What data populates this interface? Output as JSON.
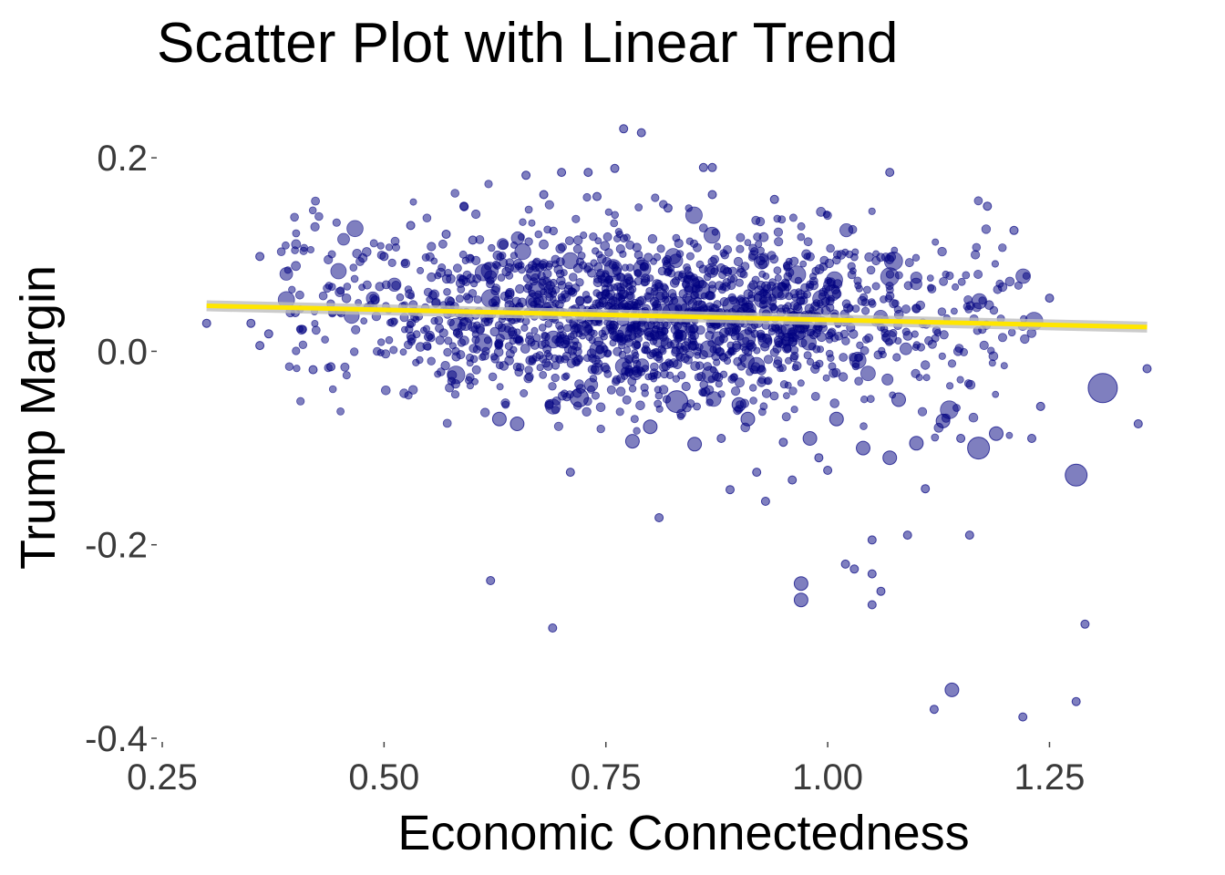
{
  "chart_data": {
    "type": "scatter",
    "title": "Scatter Plot with Linear Trend",
    "xlabel": "Economic Connectedness",
    "ylabel": "Trump Margin",
    "xlim": [
      0.25,
      1.38
    ],
    "ylim": [
      -0.4,
      0.235
    ],
    "x_ticks": [
      0.25,
      0.5,
      0.75,
      1.0,
      1.25
    ],
    "x_tick_labels": [
      "0.25",
      "0.50",
      "0.75",
      "1.00",
      "1.25"
    ],
    "y_ticks": [
      -0.4,
      -0.2,
      0.0,
      0.2
    ],
    "y_tick_labels": [
      "-0.4",
      "-0.2",
      "0.0",
      "0.2"
    ],
    "grid": false,
    "point_color": "#000080",
    "point_opacity": 0.5,
    "trend_color": "#FFE600",
    "trend_band_color": "#BEBEBE",
    "trend_line": {
      "x": [
        0.3,
        1.36
      ],
      "y": [
        0.047,
        0.025
      ]
    },
    "points": [
      {
        "x": 0.3,
        "y": 0.029,
        "s": 1
      },
      {
        "x": 0.36,
        "y": 0.098,
        "s": 1
      },
      {
        "x": 0.35,
        "y": 0.029,
        "s": 1
      },
      {
        "x": 0.36,
        "y": 0.006,
        "s": 1
      },
      {
        "x": 0.37,
        "y": 0.018,
        "s": 1
      },
      {
        "x": 0.4,
        "y": 0.04,
        "s": 1
      },
      {
        "x": 0.42,
        "y": -0.019,
        "s": 1
      },
      {
        "x": 0.44,
        "y": -0.016,
        "s": 1
      },
      {
        "x": 0.5,
        "y": 0.098,
        "s": 1
      },
      {
        "x": 0.53,
        "y": 0.13,
        "s": 1
      },
      {
        "x": 0.55,
        "y": 0.015,
        "s": 1
      },
      {
        "x": 0.57,
        "y": 0.121,
        "s": 1
      },
      {
        "x": 0.59,
        "y": 0.15,
        "s": 1
      },
      {
        "x": 0.6,
        "y": 0.115,
        "s": 1
      },
      {
        "x": 0.62,
        "y": -0.237,
        "s": 1
      },
      {
        "x": 0.63,
        "y": -0.07,
        "s": 2
      },
      {
        "x": 0.65,
        "y": -0.075,
        "s": 2
      },
      {
        "x": 0.66,
        "y": 0.182,
        "s": 1
      },
      {
        "x": 0.68,
        "y": 0.162,
        "s": 1
      },
      {
        "x": 0.69,
        "y": -0.286,
        "s": 1
      },
      {
        "x": 0.7,
        "y": 0.185,
        "s": 1
      },
      {
        "x": 0.71,
        "y": -0.125,
        "s": 1
      },
      {
        "x": 0.72,
        "y": -0.048,
        "s": 3
      },
      {
        "x": 0.73,
        "y": 0.185,
        "s": 1
      },
      {
        "x": 0.74,
        "y": 0.16,
        "s": 1
      },
      {
        "x": 0.76,
        "y": 0.189,
        "s": 1
      },
      {
        "x": 0.77,
        "y": 0.23,
        "s": 1
      },
      {
        "x": 0.78,
        "y": -0.093,
        "s": 2
      },
      {
        "x": 0.79,
        "y": 0.226,
        "s": 1
      },
      {
        "x": 0.8,
        "y": -0.078,
        "s": 2
      },
      {
        "x": 0.81,
        "y": -0.172,
        "s": 1
      },
      {
        "x": 0.82,
        "y": 0.148,
        "s": 1
      },
      {
        "x": 0.83,
        "y": -0.052,
        "s": 4
      },
      {
        "x": 0.85,
        "y": -0.096,
        "s": 2
      },
      {
        "x": 0.86,
        "y": 0.19,
        "s": 1
      },
      {
        "x": 0.87,
        "y": 0.162,
        "s": 1
      },
      {
        "x": 0.88,
        "y": -0.09,
        "s": 1
      },
      {
        "x": 0.89,
        "y": -0.143,
        "s": 1
      },
      {
        "x": 0.9,
        "y": -0.055,
        "s": 2
      },
      {
        "x": 0.91,
        "y": -0.07,
        "s": 2
      },
      {
        "x": 0.92,
        "y": -0.125,
        "s": 1
      },
      {
        "x": 0.93,
        "y": -0.155,
        "s": 1
      },
      {
        "x": 0.94,
        "y": 0.157,
        "s": 1
      },
      {
        "x": 0.95,
        "y": -0.094,
        "s": 1
      },
      {
        "x": 0.96,
        "y": -0.133,
        "s": 1
      },
      {
        "x": 0.97,
        "y": -0.24,
        "s": 2
      },
      {
        "x": 0.97,
        "y": -0.257,
        "s": 2
      },
      {
        "x": 0.98,
        "y": -0.09,
        "s": 2
      },
      {
        "x": 0.99,
        "y": -0.11,
        "s": 1
      },
      {
        "x": 1.0,
        "y": -0.123,
        "s": 1
      },
      {
        "x": 1.01,
        "y": -0.07,
        "s": 2
      },
      {
        "x": 1.02,
        "y": -0.22,
        "s": 1
      },
      {
        "x": 1.03,
        "y": -0.225,
        "s": 1
      },
      {
        "x": 1.04,
        "y": -0.1,
        "s": 2
      },
      {
        "x": 1.05,
        "y": -0.23,
        "s": 1
      },
      {
        "x": 1.05,
        "y": -0.195,
        "s": 1
      },
      {
        "x": 1.06,
        "y": -0.248,
        "s": 1
      },
      {
        "x": 1.05,
        "y": -0.262,
        "s": 1
      },
      {
        "x": 1.07,
        "y": -0.11,
        "s": 2
      },
      {
        "x": 1.08,
        "y": -0.05,
        "s": 2
      },
      {
        "x": 1.09,
        "y": -0.19,
        "s": 1
      },
      {
        "x": 1.1,
        "y": -0.095,
        "s": 2
      },
      {
        "x": 1.11,
        "y": -0.142,
        "s": 1
      },
      {
        "x": 1.12,
        "y": -0.37,
        "s": 1
      },
      {
        "x": 1.13,
        "y": -0.072,
        "s": 2
      },
      {
        "x": 1.14,
        "y": -0.35,
        "s": 2
      },
      {
        "x": 1.15,
        "y": -0.09,
        "s": 1
      },
      {
        "x": 1.16,
        "y": -0.19,
        "s": 1
      },
      {
        "x": 1.17,
        "y": -0.1,
        "s": 4
      },
      {
        "x": 1.18,
        "y": 0.15,
        "s": 1
      },
      {
        "x": 1.19,
        "y": -0.085,
        "s": 2
      },
      {
        "x": 1.21,
        "y": 0.125,
        "s": 1
      },
      {
        "x": 1.22,
        "y": -0.378,
        "s": 1
      },
      {
        "x": 1.23,
        "y": -0.09,
        "s": 1
      },
      {
        "x": 1.24,
        "y": -0.057,
        "s": 1
      },
      {
        "x": 1.25,
        "y": 0.055,
        "s": 1
      },
      {
        "x": 1.28,
        "y": -0.128,
        "s": 4
      },
      {
        "x": 1.28,
        "y": -0.362,
        "s": 1
      },
      {
        "x": 1.29,
        "y": -0.282,
        "s": 1
      },
      {
        "x": 1.31,
        "y": -0.038,
        "s": 5
      },
      {
        "x": 1.35,
        "y": -0.075,
        "s": 1
      },
      {
        "x": 1.36,
        "y": -0.018,
        "s": 1
      },
      {
        "x": 0.87,
        "y": 0.19,
        "s": 1
      },
      {
        "x": 1.07,
        "y": 0.185,
        "s": 1
      }
    ]
  }
}
